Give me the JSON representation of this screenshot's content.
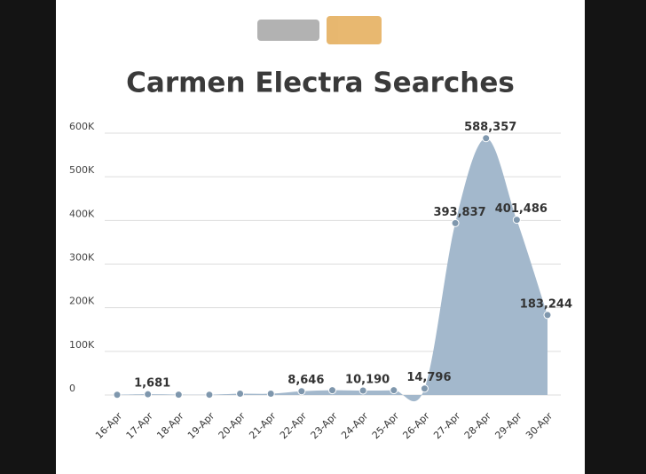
{
  "chart_data": {
    "type": "area",
    "title": "Carmen Electra Searches",
    "categories": [
      "16-Apr",
      "17-Apr",
      "18-Apr",
      "19-Apr",
      "20-Apr",
      "21-Apr",
      "22-Apr",
      "23-Apr",
      "24-Apr",
      "25-Apr",
      "26-Apr",
      "27-Apr",
      "28-Apr",
      "29-Apr",
      "30-Apr"
    ],
    "values": [
      500,
      1681,
      800,
      600,
      3000,
      3000,
      8646,
      11000,
      10190,
      11000,
      14796,
      393837,
      588357,
      401486,
      183244
    ],
    "value_labels": [
      null,
      "1,681",
      null,
      null,
      null,
      null,
      "8,646",
      null,
      "10,190",
      null,
      "14,796",
      "393,837",
      "588,357",
      "401,486",
      "183,244"
    ],
    "color": "#a3b8cc",
    "marker_color": "#7f97ad",
    "ylim": [
      0,
      600000
    ],
    "yticks": [
      {
        "value": 0,
        "label": "0"
      },
      {
        "value": 100000,
        "label": "100K"
      },
      {
        "value": 200000,
        "label": "200K"
      },
      {
        "value": 300000,
        "label": "300K"
      },
      {
        "value": 400000,
        "label": "400K"
      },
      {
        "value": 500000,
        "label": "500K"
      },
      {
        "value": 600000,
        "label": "600K"
      }
    ],
    "grid": true
  }
}
